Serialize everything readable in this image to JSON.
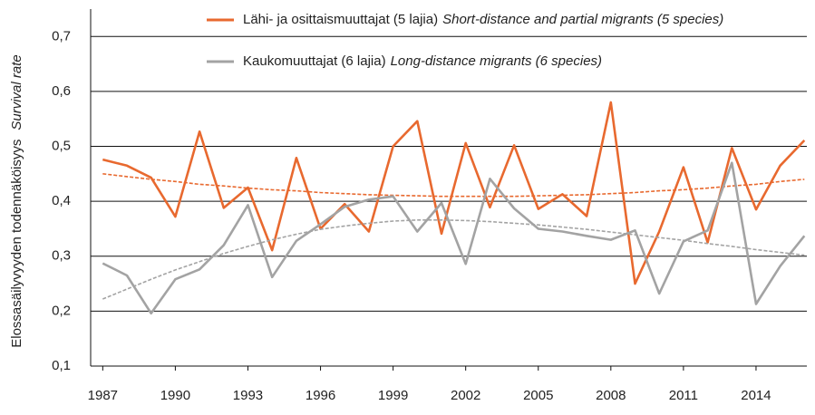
{
  "chart_data": {
    "type": "line",
    "y_label": "Elossasäilyvyyden todennäköisyys",
    "y_label_en": "Survival rate",
    "x": [
      1987,
      1988,
      1989,
      1990,
      1991,
      1992,
      1993,
      1994,
      1995,
      1996,
      1997,
      1998,
      1999,
      2000,
      2001,
      2002,
      2003,
      2004,
      2005,
      2006,
      2007,
      2008,
      2009,
      2010,
      2011,
      2012,
      2013,
      2014,
      2015,
      2016
    ],
    "series": [
      {
        "name": "Lähi- ja osittaismuuttajat (5 lajia)",
        "name_en": "Short-distance and partial migrants (5 species)",
        "color": "#e8692f",
        "values": [
          0.476,
          0.465,
          0.443,
          0.372,
          0.527,
          0.388,
          0.425,
          0.311,
          0.479,
          0.35,
          0.395,
          0.345,
          0.5,
          0.546,
          0.341,
          0.506,
          0.389,
          0.502,
          0.386,
          0.413,
          0.373,
          0.58,
          0.25,
          0.345,
          0.462,
          0.325,
          0.497,
          0.385,
          0.465,
          0.511
        ],
        "trend": [
          0.45,
          0.445,
          0.44,
          0.436,
          0.431,
          0.428,
          0.424,
          0.421,
          0.419,
          0.416,
          0.414,
          0.412,
          0.411,
          0.41,
          0.409,
          0.409,
          0.409,
          0.409,
          0.41,
          0.411,
          0.412,
          0.414,
          0.416,
          0.419,
          0.421,
          0.424,
          0.428,
          0.431,
          0.436,
          0.44
        ]
      },
      {
        "name": "Kaukomuuttajat (6 lajia)",
        "name_en": "Long-distance migrants (6 species)",
        "color": "#a3a3a3",
        "values": [
          0.287,
          0.265,
          0.196,
          0.258,
          0.276,
          0.32,
          0.393,
          0.262,
          0.328,
          0.358,
          0.39,
          0.403,
          0.409,
          0.345,
          0.397,
          0.286,
          0.441,
          0.387,
          0.35,
          0.345,
          0.337,
          0.33,
          0.347,
          0.232,
          0.327,
          0.347,
          0.47,
          0.213,
          0.282,
          0.337
        ],
        "trend": [
          0.222,
          0.24,
          0.258,
          0.275,
          0.29,
          0.305,
          0.318,
          0.33,
          0.34,
          0.349,
          0.355,
          0.36,
          0.364,
          0.366,
          0.366,
          0.365,
          0.363,
          0.36,
          0.357,
          0.353,
          0.349,
          0.344,
          0.339,
          0.334,
          0.329,
          0.323,
          0.318,
          0.312,
          0.307,
          0.302
        ]
      }
    ],
    "xlim": [
      1986.5,
      2016.1
    ],
    "xticks": [
      1987,
      1990,
      1993,
      1996,
      1999,
      2002,
      2005,
      2008,
      2011,
      2014
    ],
    "ylim": [
      0.1,
      0.75
    ],
    "yticks": [
      {
        "value": 0.1,
        "label": "0,1"
      },
      {
        "value": 0.2,
        "label": "0,2"
      },
      {
        "value": 0.3,
        "label": "0,3"
      },
      {
        "value": 0.4,
        "label": "0,4"
      },
      {
        "value": 0.5,
        "label": "0,5"
      },
      {
        "value": 0.6,
        "label": "0,6"
      },
      {
        "value": 0.7,
        "label": "0,7"
      }
    ],
    "grid": true
  }
}
